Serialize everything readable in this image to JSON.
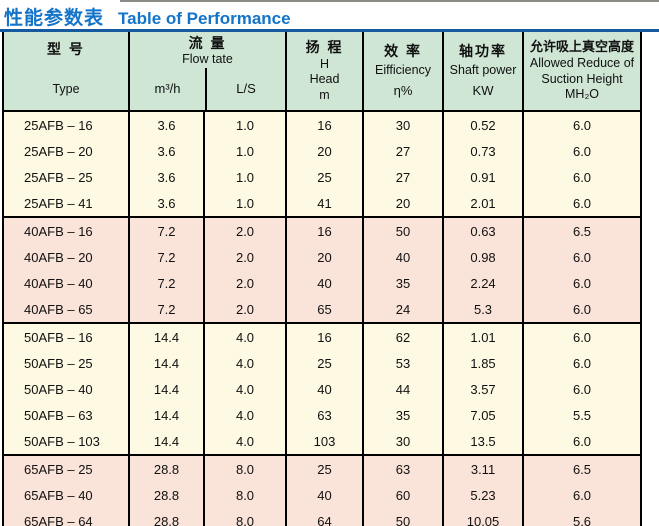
{
  "title": {
    "cn": "性能参数表",
    "en": "Table of Performance"
  },
  "table": {
    "header": {
      "type_cn": "型  号",
      "type_en": "Type",
      "flow_cn": "流  量",
      "flow_en": "Flow tate",
      "flow_unit1": "m³/h",
      "flow_unit2": "L/S",
      "head_cn": "扬  程",
      "head_l1": "H",
      "head_l2": "Head",
      "head_l3": "m",
      "eff_cn": "效  率",
      "eff_en": "Eifficiency",
      "eff_unit": "η%",
      "shaft_cn": "轴功率",
      "shaft_en": "Shaft power",
      "shaft_unit": "KW",
      "suction_cn": "允许吸上真空高度",
      "suction_en1": "Allowed Reduce of",
      "suction_en2": "Suction Height",
      "suction_unit": "MH₂O"
    },
    "groups": [
      {
        "tone": "cream",
        "rows": [
          [
            "25AFB – 16",
            "3.6",
            "1.0",
            "16",
            "30",
            "0.52",
            "6.0"
          ],
          [
            "25AFB – 20",
            "3.6",
            "1.0",
            "20",
            "27",
            "0.73",
            "6.0"
          ],
          [
            "25AFB – 25",
            "3.6",
            "1.0",
            "25",
            "27",
            "0.91",
            "6.0"
          ],
          [
            "25AFB – 41",
            "3.6",
            "1.0",
            "41",
            "20",
            "2.01",
            "6.0"
          ]
        ]
      },
      {
        "tone": "pink",
        "rows": [
          [
            "40AFB – 16",
            "7.2",
            "2.0",
            "16",
            "50",
            "0.63",
            "6.5"
          ],
          [
            "40AFB – 20",
            "7.2",
            "2.0",
            "20",
            "40",
            "0.98",
            "6.0"
          ],
          [
            "40AFB – 40",
            "7.2",
            "2.0",
            "40",
            "35",
            "2.24",
            "6.0"
          ],
          [
            "40AFB – 65",
            "7.2",
            "2.0",
            "65",
            "24",
            "5.3",
            "6.0"
          ]
        ]
      },
      {
        "tone": "cream",
        "rows": [
          [
            "50AFB – 16",
            "14.4",
            "4.0",
            "16",
            "62",
            "1.01",
            "6.0"
          ],
          [
            "50AFB – 25",
            "14.4",
            "4.0",
            "25",
            "53",
            "1.85",
            "6.0"
          ],
          [
            "50AFB – 40",
            "14.4",
            "4.0",
            "40",
            "44",
            "3.57",
            "6.0"
          ],
          [
            "50AFB – 63",
            "14.4",
            "4.0",
            "63",
            "35",
            "7.05",
            "5.5"
          ],
          [
            "50AFB – 103",
            "14.4",
            "4.0",
            "103",
            "30",
            "13.5",
            "6.0"
          ]
        ]
      },
      {
        "tone": "pink",
        "rows": [
          [
            "65AFB – 25",
            "28.8",
            "8.0",
            "25",
            "63",
            "3.11",
            "6.5"
          ],
          [
            "65AFB – 40",
            "28.8",
            "8.0",
            "40",
            "60",
            "5.23",
            "6.0"
          ],
          [
            "65AFB – 64",
            "28.8",
            "8.0",
            "64",
            "50",
            "10.05",
            "5.6"
          ]
        ]
      }
    ]
  },
  "colors": {
    "title_blue": "#1374c8",
    "rule_blue": "#155a9e",
    "header_green": "#cfe6d4",
    "row_cream": "#fdf9e3",
    "row_pink": "#fae3d9",
    "border_black": "#000000",
    "top_edge_gray": "#8b8b86"
  }
}
